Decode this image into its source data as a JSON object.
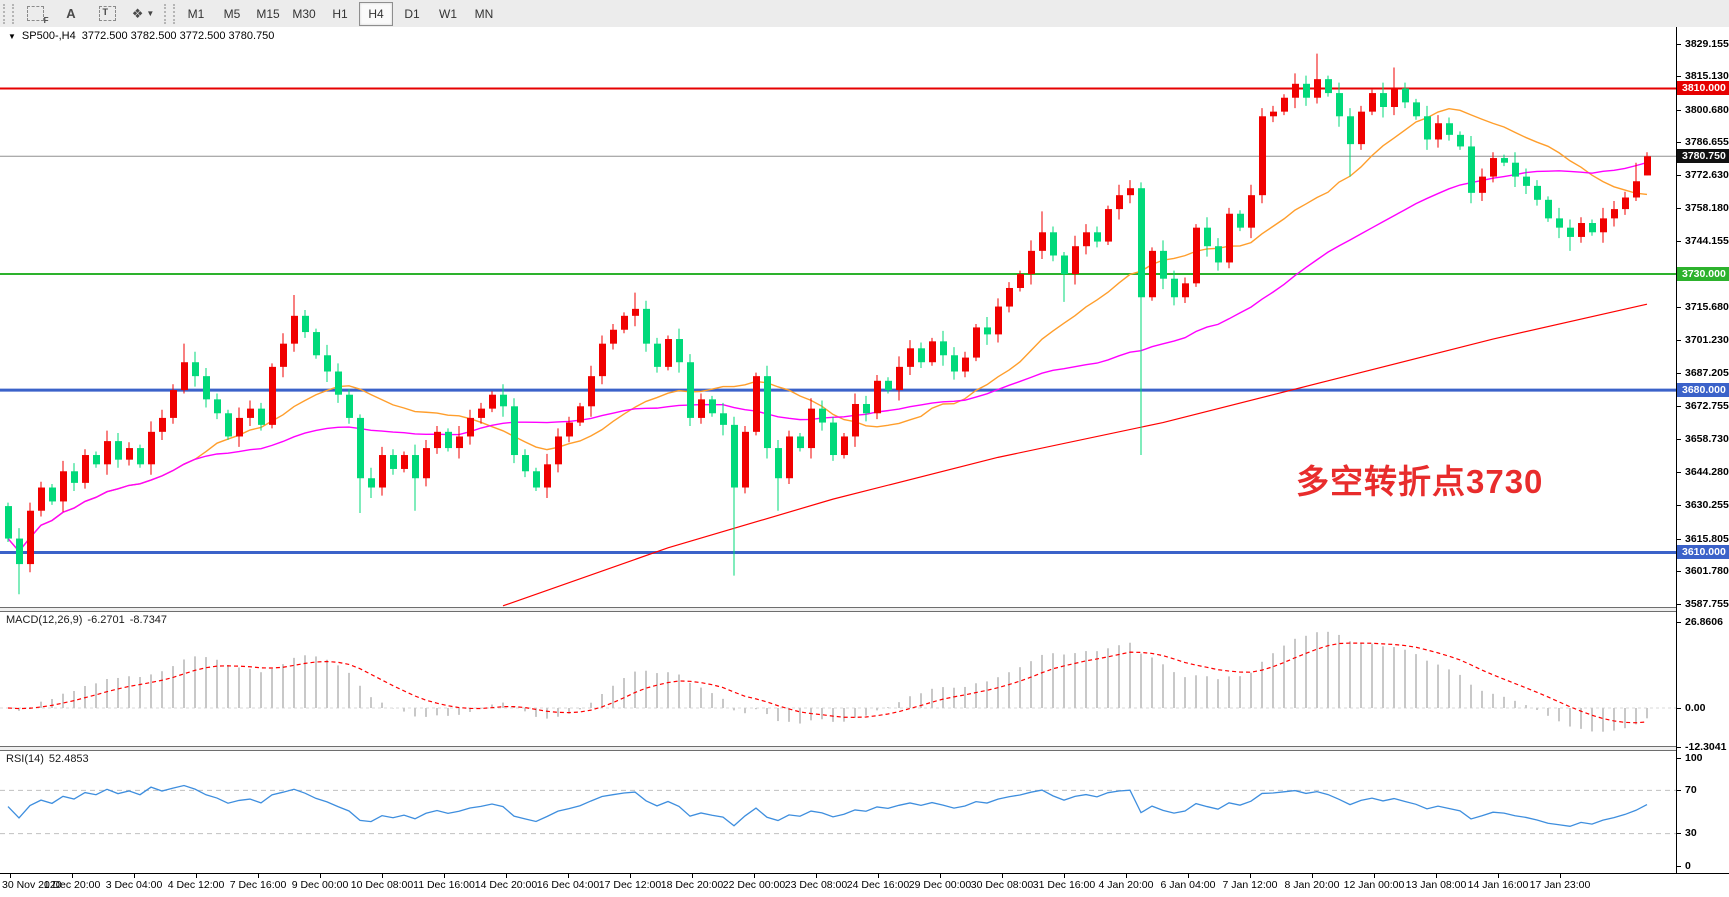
{
  "toolbar": {
    "tools": [
      {
        "name": "fibonacci-tool",
        "glyph": "F"
      },
      {
        "name": "text-label-tool",
        "glyph": "A"
      },
      {
        "name": "text-box-tool",
        "glyph": "T"
      },
      {
        "name": "arrows-tool",
        "glyph": "❖"
      }
    ],
    "timeframes": [
      "M1",
      "M5",
      "M15",
      "M30",
      "H1",
      "H4",
      "D1",
      "W1",
      "MN"
    ],
    "active_timeframe": "H4"
  },
  "window": {
    "title_symbol": "SP500-,H4",
    "title_ohlc": "3772.500 3782.500 3772.500 3780.750"
  },
  "chart_data": {
    "type": "candlestick",
    "symbol": "SP500-",
    "timeframe": "H4",
    "last_bar": {
      "open": 3772.5,
      "high": 3782.5,
      "low": 3772.5,
      "close": 3780.75
    },
    "ylim": [
      3584.0,
      3831.0
    ],
    "price_ticks": [
      "3829.155",
      "3815.130",
      "3800.680",
      "3786.655",
      "3772.630",
      "3758.180",
      "3744.155",
      "3715.680",
      "3701.230",
      "3687.205",
      "3672.755",
      "3658.730",
      "3644.280",
      "3630.255",
      "3615.805",
      "3601.780",
      "3587.755"
    ],
    "levels": [
      {
        "price": 3810.0,
        "label": "3810.000",
        "color": "#e60000",
        "width": 2
      },
      {
        "price": 3730.0,
        "label": "3730.000",
        "color": "#2db22d",
        "width": 2
      },
      {
        "price": 3680.0,
        "label": "3680.000",
        "color": "#3b62c9",
        "width": 3
      },
      {
        "price": 3610.0,
        "label": "3610.000",
        "color": "#3b62c9",
        "width": 3
      }
    ],
    "current_price": {
      "price": 3780.75,
      "label": "3780.750"
    },
    "first_open": 3630,
    "closes": [
      3616,
      3605,
      3628,
      3638,
      3632,
      3645,
      3640,
      3652,
      3648,
      3658,
      3650,
      3655,
      3648,
      3662,
      3668,
      3680,
      3692,
      3686,
      3676,
      3670,
      3660,
      3668,
      3672,
      3665,
      3690,
      3700,
      3712,
      3705,
      3695,
      3688,
      3678,
      3668,
      3642,
      3638,
      3652,
      3646,
      3652,
      3642,
      3655,
      3662,
      3655,
      3660,
      3668,
      3672,
      3678,
      3673,
      3652,
      3645,
      3638,
      3648,
      3660,
      3666,
      3673,
      3686,
      3700,
      3706,
      3712,
      3715,
      3700,
      3690,
      3702,
      3692,
      3668,
      3676,
      3670,
      3665,
      3638,
      3662,
      3686,
      3655,
      3642,
      3660,
      3655,
      3672,
      3666,
      3652,
      3660,
      3674,
      3670,
      3684,
      3680,
      3690,
      3698,
      3692,
      3701,
      3695,
      3688,
      3694,
      3707,
      3704,
      3716,
      3724,
      3730,
      3740,
      3748,
      3738,
      3730,
      3742,
      3748,
      3744,
      3758,
      3764,
      3767,
      3720,
      3740,
      3728,
      3720,
      3726,
      3750,
      3742,
      3735,
      3756,
      3750,
      3764,
      3798,
      3800,
      3806,
      3812,
      3806,
      3814,
      3808,
      3798,
      3786,
      3800,
      3808,
      3802,
      3810,
      3804,
      3798,
      3788,
      3795,
      3790,
      3785,
      3765,
      3772,
      3780,
      3778,
      3772,
      3768,
      3762,
      3754,
      3750,
      3746,
      3752,
      3748,
      3754,
      3758,
      3763,
      3770,
      3780.75
    ],
    "wick_overrides": [
      [
        1,
        "low",
        3592
      ],
      [
        16,
        "high",
        3700
      ],
      [
        26,
        "high",
        3721
      ],
      [
        32,
        "low",
        3627
      ],
      [
        37,
        "low",
        3628
      ],
      [
        57,
        "high",
        3722
      ],
      [
        66,
        "low",
        3600
      ],
      [
        70,
        "low",
        3628
      ],
      [
        94,
        "high",
        3757
      ],
      [
        96,
        "low",
        3718
      ],
      [
        103,
        "low",
        3652
      ],
      [
        119,
        "high",
        3825
      ],
      [
        122,
        "low",
        3772
      ],
      [
        126,
        "high",
        3819
      ],
      [
        142,
        "low",
        3740
      ],
      [
        148,
        "high",
        3778
      ]
    ],
    "ma_fast_period": 18,
    "ma_mid_period": 42,
    "ma_slow_path": [
      [
        45,
        3587
      ],
      [
        60,
        3612
      ],
      [
        75,
        3633
      ],
      [
        90,
        3651
      ],
      [
        105,
        3666
      ],
      [
        120,
        3684
      ],
      [
        135,
        3702
      ],
      [
        149,
        3717
      ]
    ],
    "time_labels": [
      "30 Nov 2020",
      "1 Dec 20:00",
      "3 Dec 04:00",
      "4 Dec 12:00",
      "7 Dec 16:00",
      "9 Dec 00:00",
      "10 Dec 08:00",
      "11 Dec 16:00",
      "14 Dec 20:00",
      "16 Dec 04:00",
      "17 Dec 12:00",
      "18 Dec 20:00",
      "22 Dec 00:00",
      "23 Dec 08:00",
      "24 Dec 16:00",
      "29 Dec 00:00",
      "30 Dec 08:00",
      "31 Dec 16:00",
      "4 Jan 20:00",
      "6 Jan 04:00",
      "7 Jan 12:00",
      "8 Jan 20:00",
      "12 Jan 00:00",
      "13 Jan 08:00",
      "14 Jan 16:00",
      "17 Jan 23:00"
    ],
    "annotation": {
      "text": "多空转折点3730"
    },
    "macd": {
      "label": "MACD(12,26,9)",
      "main": "-6.2701",
      "signal": "-8.7347",
      "fast": 12,
      "slow": 26,
      "smooth": 9,
      "axis_ticks": [
        "26.8606",
        "0.00",
        "-12.3041"
      ]
    },
    "rsi": {
      "label": "RSI(14)",
      "value": "52.4853",
      "period": 14,
      "axis_ticks": [
        "100",
        "70",
        "30",
        "0"
      ],
      "levels": [
        70,
        30
      ]
    }
  },
  "colors": {
    "up": "#f00000",
    "down": "#00d97a",
    "ma_fast": "#ff9e2c",
    "ma_mid": "#ff00ff",
    "ma_slow": "#ff0000",
    "macd_hist": "#c8c8c8",
    "macd_signal": "#ff0000",
    "rsi_line": "#3e8ede",
    "silver_level": "#c0c0c0",
    "annotation": "#e82c2c",
    "current_price_line": "#909090",
    "current_price_badge": "#111111"
  }
}
